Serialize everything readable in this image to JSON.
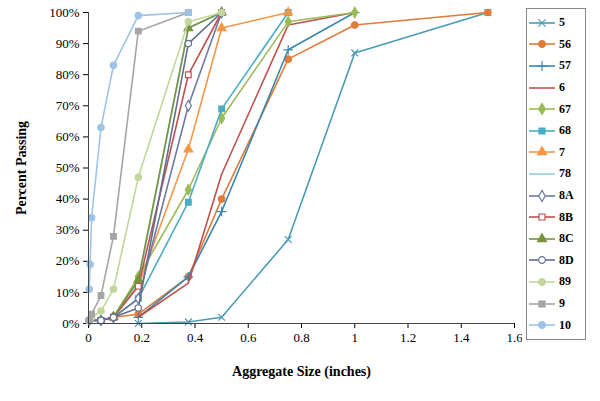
{
  "chart_data": {
    "type": "line",
    "xlabel": "Aggregate Size (inches)",
    "ylabel": "Percent Passing",
    "xlim": [
      0,
      1.6
    ],
    "xticks": [
      0,
      0.2,
      0.4,
      0.6,
      0.8,
      1,
      1.2,
      1.4,
      1.6
    ],
    "ylim": [
      0,
      100
    ],
    "yticks": [
      {
        "value": 0,
        "label": "0%"
      },
      {
        "value": 10,
        "label": "10%"
      },
      {
        "value": 20,
        "label": "20%"
      },
      {
        "value": 30,
        "label": "30%"
      },
      {
        "value": 40,
        "label": "40%"
      },
      {
        "value": 50,
        "label": "50%"
      },
      {
        "value": 60,
        "label": "60%"
      },
      {
        "value": 70,
        "label": "70%"
      },
      {
        "value": 80,
        "label": "80%"
      },
      {
        "value": 90,
        "label": "90%"
      },
      {
        "value": 100,
        "label": "100%"
      }
    ],
    "grid": false,
    "legend": "right",
    "series": [
      {
        "name": "5",
        "color": "#4a9bb5",
        "marker": "x",
        "x": [
          0.187,
          0.375,
          0.5,
          0.75,
          1,
          1.5
        ],
        "values": [
          0,
          0.5,
          2,
          27,
          87,
          100
        ]
      },
      {
        "name": "56",
        "color": "#e07b39",
        "marker": "circle",
        "x": [
          0.0029,
          0.0469,
          0.0937,
          0.187,
          0.375,
          0.5,
          0.75,
          1,
          1.5
        ],
        "values": [
          1,
          1,
          2,
          3,
          15,
          40,
          85,
          96,
          100
        ]
      },
      {
        "name": "57",
        "color": "#3a86b0",
        "marker": "plus",
        "x": [
          0.187,
          0.375,
          0.5,
          0.75,
          1
        ],
        "values": [
          2,
          15,
          36,
          88,
          100
        ]
      },
      {
        "name": "6",
        "color": "#c0504d",
        "marker": "none",
        "x": [
          0.187,
          0.375,
          0.5,
          0.75,
          1
        ],
        "values": [
          2,
          13,
          48,
          96,
          100
        ]
      },
      {
        "name": "67",
        "color": "#9bbb59",
        "marker": "diamond",
        "x": [
          0.0937,
          0.187,
          0.375,
          0.5,
          0.75,
          1
        ],
        "values": [
          2,
          15,
          43,
          66,
          97,
          100
        ]
      },
      {
        "name": "68",
        "color": "#4bacc6",
        "marker": "square",
        "x": [
          0.0029,
          0.0469,
          0.0937,
          0.187,
          0.375,
          0.5,
          0.75
        ],
        "values": [
          1,
          1,
          2,
          8,
          39,
          69,
          100
        ]
      },
      {
        "name": "7",
        "color": "#f79646",
        "marker": "triangle",
        "x": [
          0.0937,
          0.187,
          0.375,
          0.5,
          0.75
        ],
        "values": [
          2,
          12,
          56,
          95,
          100
        ]
      },
      {
        "name": "78",
        "color": "#93cddd",
        "marker": "none",
        "x": [
          0.0937,
          0.187,
          0.375,
          0.5
        ],
        "values": [
          2,
          13,
          95,
          100
        ]
      },
      {
        "name": "8A",
        "color": "#6b7aa6",
        "marker": "open-diamond",
        "x": [
          0.0029,
          0.0469,
          0.0937,
          0.187,
          0.375,
          0.5
        ],
        "values": [
          1,
          1,
          2,
          8,
          70,
          100
        ]
      },
      {
        "name": "8B",
        "color": "#c0504d",
        "marker": "open-square",
        "x": [
          0.0469,
          0.0937,
          0.187,
          0.375,
          0.5
        ],
        "values": [
          1,
          2,
          12,
          80,
          100
        ]
      },
      {
        "name": "8C",
        "color": "#77933c",
        "marker": "triangle",
        "x": [
          0.0937,
          0.187,
          0.375,
          0.5
        ],
        "values": [
          2,
          14,
          95,
          100
        ]
      },
      {
        "name": "8D",
        "color": "#5f6f8f",
        "marker": "open-circle",
        "x": [
          0.0029,
          0.0469,
          0.0937,
          0.187,
          0.375,
          0.5
        ],
        "values": [
          1,
          1,
          2,
          5,
          90,
          100
        ]
      },
      {
        "name": "89",
        "color": "#c3d69b",
        "marker": "circle",
        "x": [
          0.0029,
          0.0117,
          0.0469,
          0.0937,
          0.187,
          0.375,
          0.5
        ],
        "values": [
          1,
          2,
          4,
          11,
          47,
          97,
          100
        ]
      },
      {
        "name": "9",
        "color": "#a5a5a5",
        "marker": "square",
        "x": [
          0.0029,
          0.0117,
          0.0469,
          0.0937,
          0.187,
          0.375
        ],
        "values": [
          1,
          3,
          9,
          28,
          94,
          100
        ]
      },
      {
        "name": "10",
        "color": "#9dc3e6",
        "marker": "circle",
        "x": [
          0.0029,
          0.0059,
          0.0117,
          0.0469,
          0.0937,
          0.187,
          0.375
        ],
        "values": [
          11,
          19,
          34,
          63,
          83,
          99,
          100
        ]
      }
    ]
  }
}
